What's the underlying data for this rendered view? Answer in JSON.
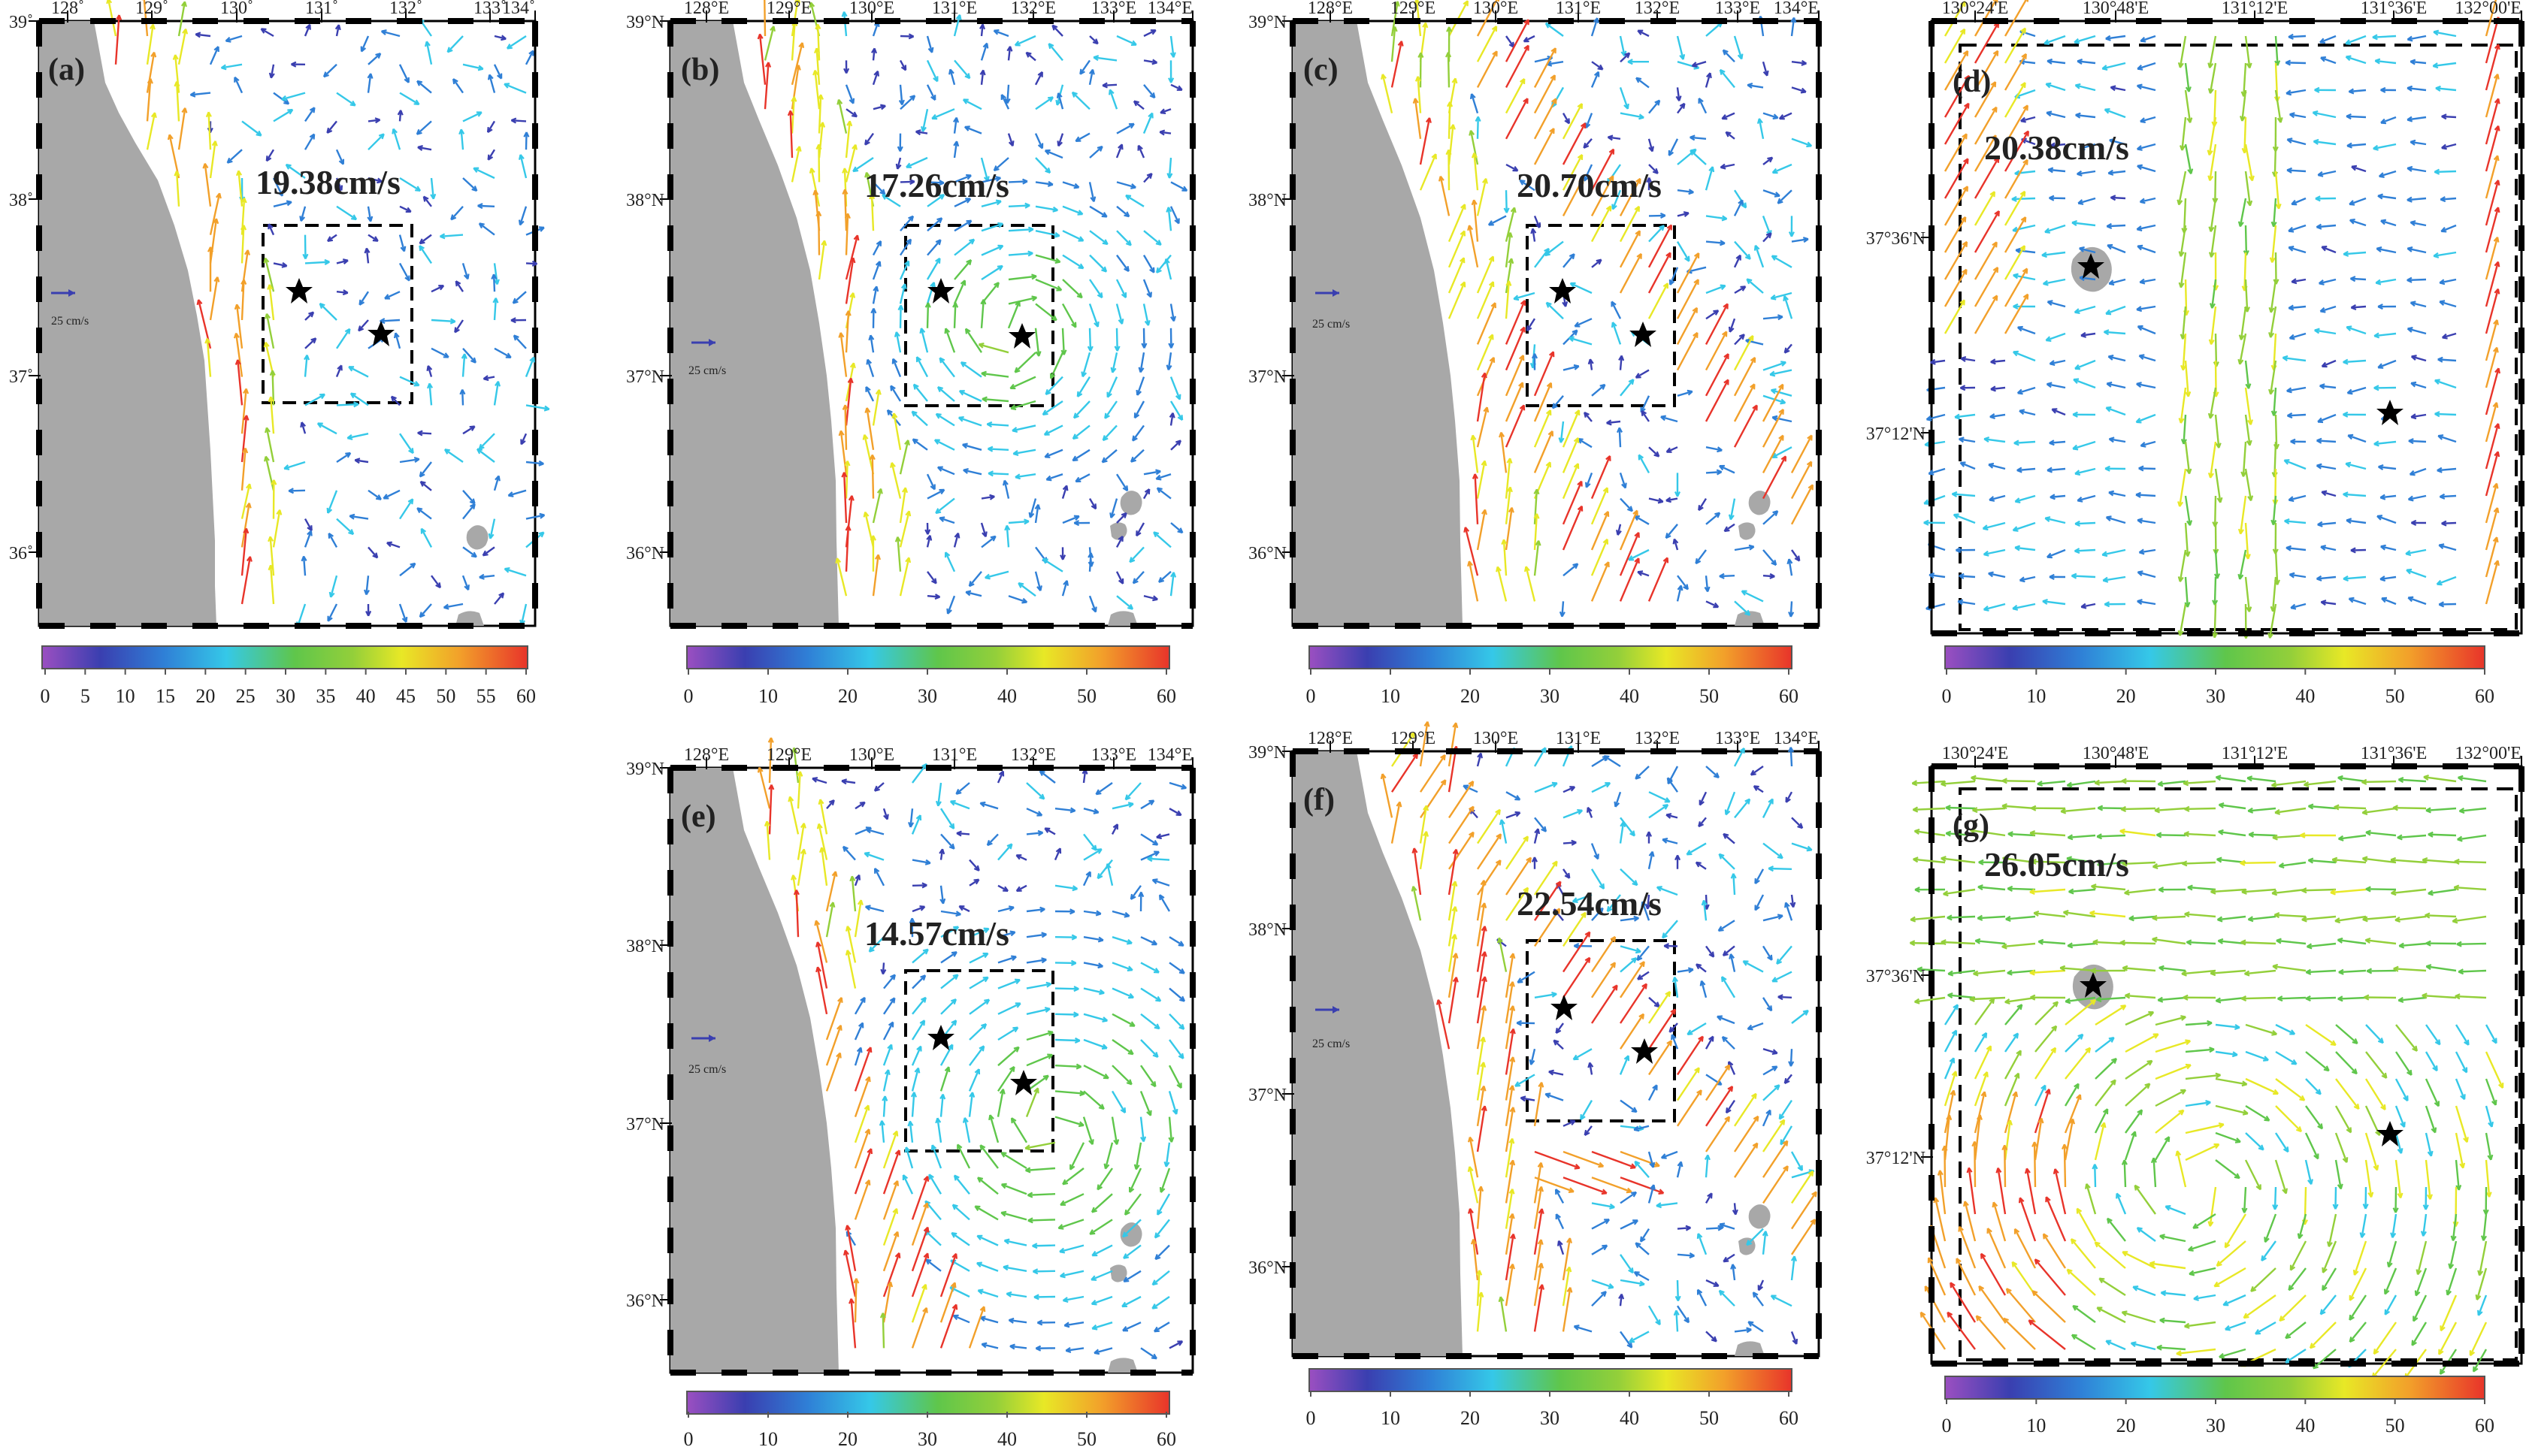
{
  "figure": {
    "panels": [
      {
        "id": "a",
        "label": "(a)",
        "speed_label": "19.38cm/s",
        "view": "large",
        "x_ticks": [
          "128˚",
          "129˚",
          "130˚",
          "131˚",
          "132˚",
          "133˚",
          "134˚"
        ],
        "y_ticks": [
          "39˚",
          "38˚",
          "37˚",
          "36˚"
        ],
        "reference_label": "25 cm/s",
        "colorbar_ticks": [
          "0",
          "5",
          "10",
          "15",
          "20",
          "25",
          "30",
          "35",
          "40",
          "45",
          "50",
          "55",
          "60"
        ]
      },
      {
        "id": "b",
        "label": "(b)",
        "speed_label": "17.26cm/s",
        "view": "large",
        "x_ticks": [
          "128°E",
          "129°E",
          "130°E",
          "131°E",
          "132°E",
          "133°E",
          "134°E"
        ],
        "y_ticks": [
          "39°N",
          "38°N",
          "37°N",
          "36°N"
        ],
        "reference_label": "25 cm/s",
        "colorbar_ticks": [
          "0",
          "10",
          "20",
          "30",
          "40",
          "50",
          "60"
        ]
      },
      {
        "id": "c",
        "label": "(c)",
        "speed_label": "20.70cm/s",
        "view": "large",
        "x_ticks": [
          "128°E",
          "129°E",
          "130°E",
          "131°E",
          "132°E",
          "133°E",
          "134°E"
        ],
        "y_ticks": [
          "39°N",
          "38°N",
          "37°N",
          "36°N"
        ],
        "reference_label": "25 cm/s",
        "colorbar_ticks": [
          "0",
          "10",
          "20",
          "30",
          "40",
          "50",
          "60"
        ]
      },
      {
        "id": "d",
        "label": "(d)",
        "speed_label": "20.38cm/s",
        "view": "zoom",
        "x_ticks": [
          "130°24'E",
          "130°48'E",
          "131°12'E",
          "131°36'E",
          "132°00'E"
        ],
        "y_ticks": [
          "37°36'N",
          "37°12'N"
        ],
        "reference_label": "",
        "colorbar_ticks": [
          "0",
          "10",
          "20",
          "30",
          "40",
          "50",
          "60"
        ]
      },
      {
        "id": "e",
        "label": "(e)",
        "speed_label": "14.57cm/s",
        "view": "large",
        "x_ticks": [
          "128°E",
          "129°E",
          "130°E",
          "131°E",
          "132°E",
          "133°E",
          "134°E"
        ],
        "y_ticks": [
          "39°N",
          "38°N",
          "37°N",
          "36°N"
        ],
        "reference_label": "25 cm/s",
        "colorbar_ticks": [
          "0",
          "10",
          "20",
          "30",
          "40",
          "50",
          "60"
        ]
      },
      {
        "id": "f",
        "label": "(f)",
        "speed_label": "22.54cm/s",
        "view": "large",
        "x_ticks": [
          "128°E",
          "129°E",
          "130°E",
          "131°E",
          "132°E",
          "133°E",
          "134°E"
        ],
        "y_ticks": [
          "39°N",
          "38°N",
          "37°N",
          "36°N"
        ],
        "reference_label": "25 cm/s",
        "colorbar_ticks": [
          "0",
          "10",
          "20",
          "30",
          "40",
          "50",
          "60"
        ]
      },
      {
        "id": "g",
        "label": "(g)",
        "speed_label": "26.05cm/s",
        "view": "zoom",
        "x_ticks": [
          "130°24'E",
          "130°48'E",
          "131°12'E",
          "131°36'E",
          "132°00'E"
        ],
        "y_ticks": [
          "37°36'N",
          "37°12'N"
        ],
        "reference_label": "",
        "colorbar_ticks": [
          "0",
          "10",
          "20",
          "30",
          "40",
          "50",
          "60"
        ]
      }
    ],
    "colors": {
      "land": "#a8a8a8",
      "colormap": [
        "#9b4fc1",
        "#3a3fb0",
        "#2f7fd6",
        "#35c8e8",
        "#5fc64b",
        "#93cf3a",
        "#e8e826",
        "#f2a02a",
        "#e8342a"
      ]
    }
  }
}
